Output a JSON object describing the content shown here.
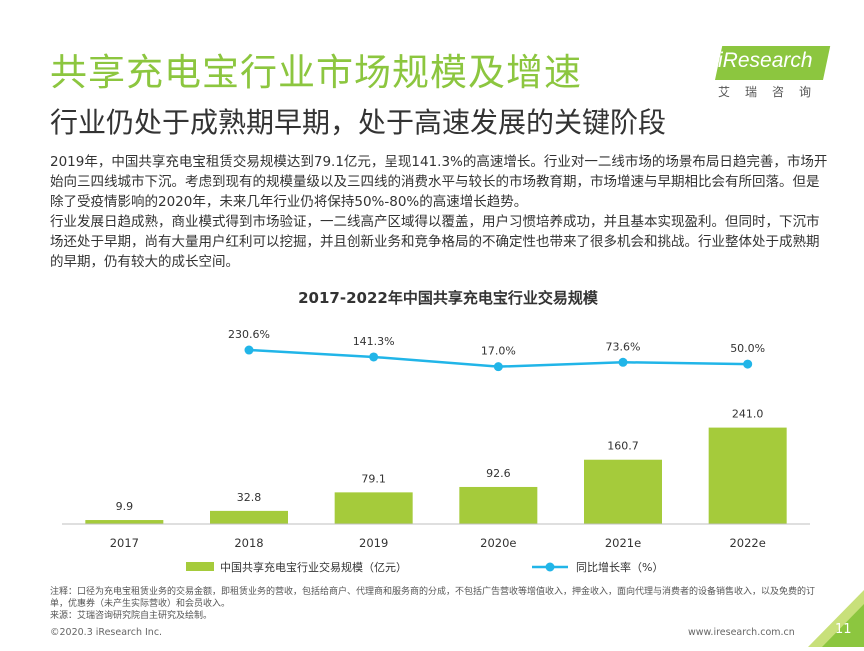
{
  "header": {
    "title": "共享充电宝行业市场规模及增速",
    "subtitle": "行业仍处于成熟期早期，处于高速发展的关键阶段"
  },
  "logo": {
    "name": "iResearch",
    "cn": "艾瑞咨询"
  },
  "body": {
    "para1": "2019年，中国共享充电宝租赁交易规模达到79.1亿元，呈现141.3%的高速增长。行业对一二线市场的场景布局日趋完善，市场开始向三四线城市下沉。考虑到现有的规模量级以及三四线的消费水平与较长的市场教育期，市场增速与早期相比会有所回落。但是除了受疫情影响的2020年，未来几年行业仍将保持50%-80%的高速增长趋势。",
    "para2": "行业发展日趋成熟，商业模式得到市场验证，一二线高产区域得以覆盖，用户习惯培养成功，并且基本实现盈利。但同时，下沉市场还处于早期，尚有大量用户红利可以挖掘，并且创新业务和竞争格局的不确定性也带来了很多机会和挑战。行业整体处于成熟期的早期，仍有较大的成长空间。"
  },
  "chart_data": {
    "type": "bar",
    "title": "2017-2022年中国共享充电宝行业交易规模",
    "categories": [
      "2017",
      "2018",
      "2019",
      "2020e",
      "2021e",
      "2022e"
    ],
    "series": [
      {
        "name": "中国共享充电宝行业交易规模（亿元）",
        "type": "bar",
        "values": [
          9.9,
          32.8,
          79.1,
          92.6,
          160.7,
          241.0
        ],
        "labels": [
          "9.9",
          "32.8",
          "79.1",
          "92.6",
          "160.7",
          "241.0"
        ]
      },
      {
        "name": "同比增长率（%）",
        "type": "line",
        "x": [
          "2018",
          "2019",
          "2020e",
          "2021e",
          "2022e"
        ],
        "values": [
          230.6,
          141.3,
          17.0,
          73.6,
          50.0
        ],
        "labels": [
          "230.6%",
          "141.3%",
          "17.0%",
          "73.6%",
          "50.0%"
        ]
      }
    ],
    "legend": "bottom",
    "grid": false,
    "colors": {
      "bar": "#a5cb3b",
      "line": "#21b5e8",
      "axis": "#bfbfbf"
    }
  },
  "notes": {
    "line1": "注释：口径为充电宝租赁业务的交易金额，即租赁业务的营收，包括给商户、代理商和服务商的分成，不包括广告营收等增值收入，押金收入，面向代理与消费者的设备销售收入，以及免费的订单，优惠券（未产生实际营收）和会员收入。",
    "line2": "来源：艾瑞咨询研究院自主研究及绘制。"
  },
  "footer": {
    "copyright": "©2020.3 iResearch Inc.",
    "url": "www.iresearch.com.cn",
    "page": "11"
  }
}
